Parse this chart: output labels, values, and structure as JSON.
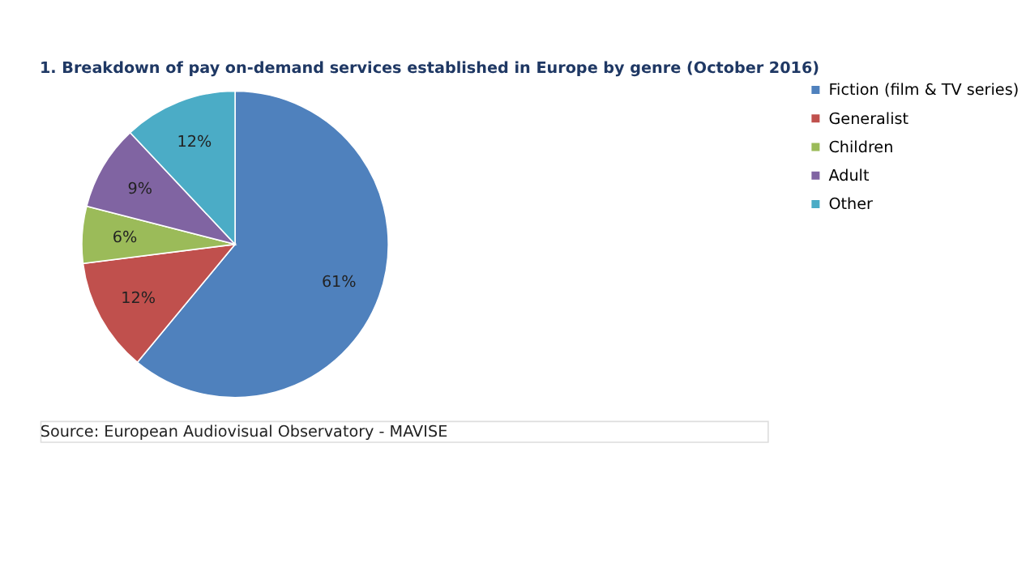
{
  "chart_data": {
    "type": "pie",
    "title": "1. Breakdown of pay on-demand services established in Europe by genre (October 2016)",
    "categories": [
      "Fiction (film & TV series)",
      "Generalist",
      "Children",
      "Adult",
      "Other"
    ],
    "values": [
      61,
      12,
      6,
      9,
      12
    ],
    "value_labels": [
      "61%",
      "12%",
      "6%",
      "9%",
      "12%"
    ],
    "colors": [
      "#4f81bd",
      "#c0504d",
      "#9bbb59",
      "#8064a2",
      "#4bacc6"
    ],
    "legend": "right",
    "annotations": [
      "Source: European Audiovisual Observatory - MAVISE"
    ]
  }
}
